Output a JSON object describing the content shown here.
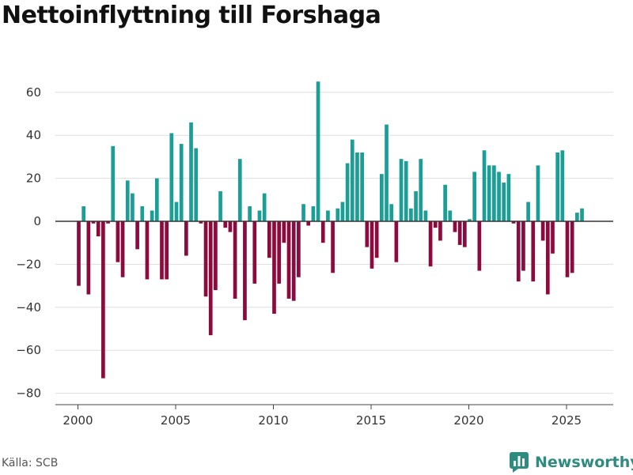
{
  "header": {
    "title": "Nettoinflyttning till Forshaga"
  },
  "footer": {
    "source": "Källa: SCB",
    "brand": "Newsworthy",
    "brand_icon": "bar-chart-logo-icon"
  },
  "colors": {
    "positive": "#1a9e96",
    "negative": "#8c0b3e",
    "zero_line": "#333333",
    "grid": "#dddddd",
    "brand": "#2e8b80"
  },
  "chart_data": {
    "type": "bar",
    "title": "Nettoinflyttning till Forshaga",
    "xlabel": "",
    "ylabel": "",
    "frequency": "quarterly",
    "start": 2000.0,
    "step": 0.25,
    "ylim": [
      -80,
      70
    ],
    "yticks": [
      -80,
      -60,
      -40,
      -20,
      0,
      20,
      40,
      60
    ],
    "xticks": [
      2000,
      2005,
      2010,
      2015,
      2020,
      2025
    ],
    "grid": true,
    "values": [
      -30,
      7,
      -34,
      -1,
      -7,
      -73,
      -1,
      35,
      -19,
      -26,
      19,
      13,
      -13,
      7,
      -27,
      5,
      20,
      -27,
      -27,
      41,
      9,
      36,
      -16,
      46,
      34,
      -1,
      -35,
      -53,
      -32,
      14,
      -3,
      -5,
      -36,
      29,
      -46,
      7,
      -29,
      5,
      13,
      -17,
      -43,
      -29,
      -10,
      -36,
      -37,
      -26,
      8,
      -2,
      7,
      65,
      -10,
      5,
      -24,
      6,
      9,
      27,
      38,
      32,
      32,
      -12,
      -22,
      -17,
      22,
      45,
      8,
      -19,
      29,
      28,
      6,
      14,
      29,
      5,
      -21,
      -3,
      -9,
      17,
      5,
      -5,
      -11,
      -12,
      1,
      23,
      -23,
      33,
      26,
      26,
      23,
      18,
      22,
      -1,
      -28,
      -23,
      9,
      -28,
      26,
      -9,
      -34,
      -15,
      32,
      33,
      -26,
      -24,
      4,
      6
    ]
  }
}
